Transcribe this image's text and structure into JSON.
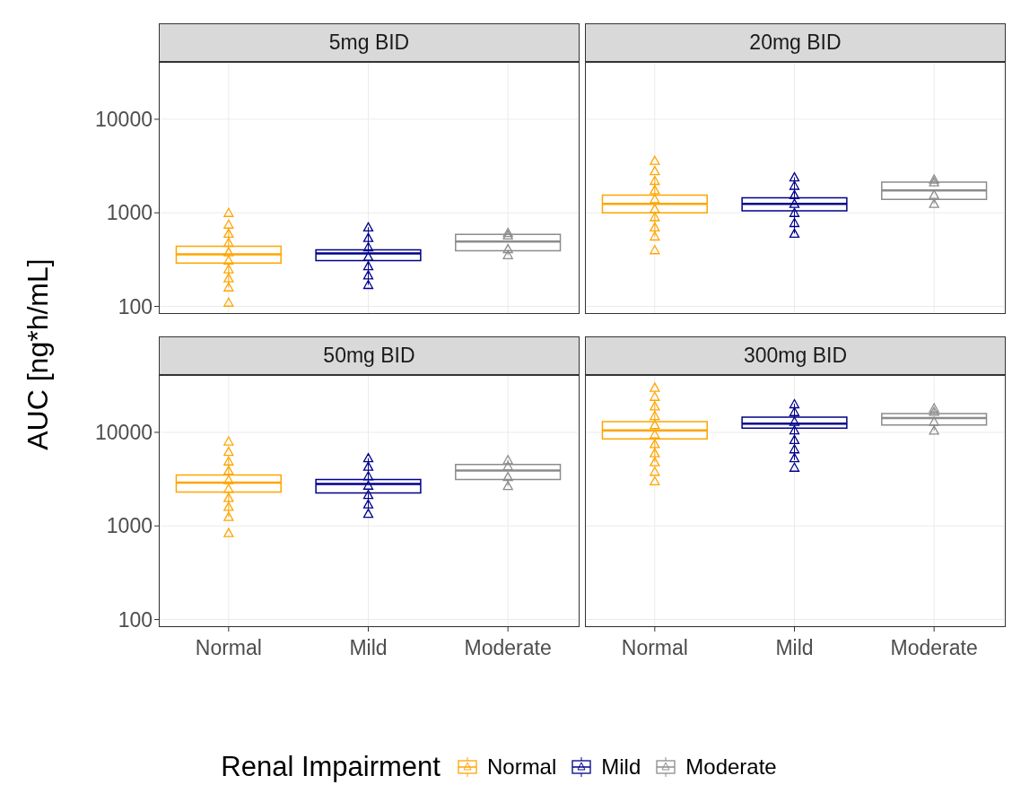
{
  "chart_data": [
    {
      "type": "box",
      "title": "5mg BID",
      "ylabel": "AUC [ng*h/mL]",
      "categories": [
        "Normal",
        "Mild",
        "Moderate"
      ],
      "ylim": [
        83,
        41000
      ],
      "yticks": [
        100,
        1000,
        10000
      ],
      "log": "y",
      "grid": true,
      "tick_labels": "y",
      "marker": "triangle",
      "colors": [
        "#ffa500",
        "#00008b",
        "#8c8c8c"
      ],
      "boxes": [
        {
          "low": 160,
          "q1": 290,
          "median": 360,
          "q3": 440,
          "high": 650
        },
        {
          "low": 170,
          "q1": 309,
          "median": 369,
          "q3": 403,
          "high": 702
        },
        {
          "low": 354,
          "q1": 394,
          "median": 492,
          "q3": 588,
          "high": 610
        }
      ],
      "series": [
        {
          "type": "scatter",
          "color": "#ffa500",
          "x": [
            "Normal",
            "Normal",
            "Normal",
            "Normal",
            "Normal",
            "Normal",
            "Normal",
            "Normal",
            "Normal",
            "Normal"
          ],
          "values": [
            110,
            160,
            200,
            250,
            310,
            380,
            480,
            600,
            750,
            1000
          ]
        },
        {
          "type": "scatter",
          "color": "#00008b",
          "x": [
            "Mild",
            "Mild",
            "Mild",
            "Mild",
            "Mild",
            "Mild",
            "Mild"
          ],
          "values": [
            170,
            215,
            270,
            340,
            430,
            540,
            700
          ]
        },
        {
          "type": "scatter",
          "color": "#8c8c8c",
          "x": [
            "Moderate",
            "Moderate",
            "Moderate",
            "Moderate"
          ],
          "values": [
            410,
            354,
            610,
            575
          ]
        }
      ]
    },
    {
      "type": "box",
      "title": "20mg BID",
      "categories": [
        "Normal",
        "Mild",
        "Moderate"
      ],
      "ylim": [
        83,
        41000
      ],
      "yticks": [
        100,
        1000,
        10000
      ],
      "log": "y",
      "grid": true,
      "tick_labels": false,
      "marker": "triangle",
      "colors": [
        "#ffa500",
        "#00008b",
        "#8c8c8c"
      ],
      "boxes": [
        {
          "low": 560,
          "q1": 1000,
          "median": 1250,
          "q3": 1550,
          "high": 2400
        },
        {
          "low": 600,
          "q1": 1050,
          "median": 1250,
          "q3": 1450,
          "high": 2400
        },
        {
          "low": 1250,
          "q1": 1396,
          "median": 1738,
          "q3": 2124,
          "high": 2270
        }
      ],
      "series": [
        {
          "type": "scatter",
          "color": "#ffa500",
          "x": [
            "Normal",
            "Normal",
            "Normal",
            "Normal",
            "Normal",
            "Normal",
            "Normal",
            "Normal",
            "Normal",
            "Normal"
          ],
          "values": [
            400,
            560,
            700,
            900,
            1100,
            1400,
            1750,
            2200,
            2800,
            3600
          ]
        },
        {
          "type": "scatter",
          "color": "#00008b",
          "x": [
            "Mild",
            "Mild",
            "Mild",
            "Mild",
            "Mild",
            "Mild",
            "Mild"
          ],
          "values": [
            600,
            780,
            1000,
            1250,
            1550,
            1950,
            2400
          ]
        },
        {
          "type": "scatter",
          "color": "#8c8c8c",
          "x": [
            "Moderate",
            "Moderate",
            "Moderate",
            "Moderate"
          ],
          "values": [
            1560,
            2270,
            2120,
            1250
          ]
        }
      ]
    },
    {
      "type": "box",
      "title": "50mg BID",
      "categories": [
        "Normal",
        "Mild",
        "Moderate"
      ],
      "ylim": [
        83,
        41000
      ],
      "yticks": [
        100,
        1000,
        10000
      ],
      "log": "y",
      "grid": true,
      "marker": "triangle",
      "colors": [
        "#ffa500",
        "#00008b",
        "#8c8c8c"
      ],
      "boxes": [
        {
          "low": 1250,
          "q1": 2300,
          "median": 2900,
          "q3": 3500,
          "high": 5300
        },
        {
          "low": 1450,
          "q1": 2250,
          "median": 2800,
          "q3": 3130,
          "high": 5300
        },
        {
          "low": 2680,
          "q1": 3130,
          "median": 3900,
          "q3": 4540,
          "high": 5060
        }
      ],
      "series": [
        {
          "type": "scatter",
          "color": "#ffa500",
          "x": [
            "Normal",
            "Normal",
            "Normal",
            "Normal",
            "Normal",
            "Normal",
            "Normal",
            "Normal",
            "Normal",
            "Normal"
          ],
          "values": [
            840,
            1250,
            1600,
            2000,
            2500,
            3100,
            3900,
            4900,
            6200,
            8000
          ]
        },
        {
          "type": "scatter",
          "color": "#00008b",
          "x": [
            "Mild",
            "Mild",
            "Mild",
            "Mild",
            "Mild",
            "Mild",
            "Mild"
          ],
          "values": [
            1350,
            1700,
            2150,
            2700,
            3400,
            4300,
            5300
          ]
        },
        {
          "type": "scatter",
          "color": "#8c8c8c",
          "x": [
            "Moderate",
            "Moderate",
            "Moderate",
            "Moderate"
          ],
          "values": [
            3340,
            2680,
            4340,
            5060
          ]
        }
      ]
    },
    {
      "type": "box",
      "title": "300mg BID",
      "legend_title": "Renal Impairment",
      "legend": "bottom",
      "categories": [
        "Normal",
        "Mild",
        "Moderate"
      ],
      "ylim": [
        83,
        41000
      ],
      "yticks": [
        100,
        1000,
        10000
      ],
      "log": "y",
      "grid": true,
      "tick_labels": "x",
      "marker": "triangle",
      "colors": [
        "#ffa500",
        "#00008b",
        "#8c8c8c"
      ],
      "boxes": [
        {
          "low": 4800,
          "q1": 8500,
          "median": 10500,
          "q3": 13000,
          "high": 20000
        },
        {
          "low": 5060,
          "q1": 11100,
          "median": 12400,
          "q3": 14500,
          "high": 20200
        },
        {
          "low": 10450,
          "q1": 12000,
          "median": 14200,
          "q3": 15900,
          "high": 18100
        }
      ],
      "series": [
        {
          "type": "scatter",
          "name": "Normal",
          "color": "#ffa500",
          "x": [
            "Normal",
            "Normal",
            "Normal",
            "Normal",
            "Normal",
            "Normal",
            "Normal",
            "Normal",
            "Normal",
            "Normal",
            "Normal"
          ],
          "values": [
            3000,
            3800,
            4800,
            6000,
            7500,
            9500,
            12000,
            15000,
            19000,
            24000,
            30000
          ]
        },
        {
          "type": "scatter",
          "name": "Mild",
          "color": "#00008b",
          "x": [
            "Mild",
            "Mild",
            "Mild",
            "Mild",
            "Mild",
            "Mild",
            "Mild",
            "Mild"
          ],
          "values": [
            4200,
            5300,
            6600,
            8300,
            10500,
            13000,
            16500,
            20000
          ]
        },
        {
          "type": "scatter",
          "name": "Moderate",
          "color": "#8c8c8c",
          "x": [
            "Moderate",
            "Moderate",
            "Moderate",
            "Moderate"
          ],
          "values": [
            18100,
            16600,
            13000,
            10450
          ]
        }
      ]
    }
  ]
}
